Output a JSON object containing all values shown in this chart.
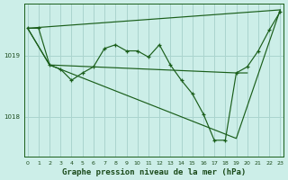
{
  "title": "Graphe pression niveau de la mer (hPa)",
  "bg_color": "#cceee8",
  "grid_color": "#aad4ce",
  "line_color": "#1a5e1a",
  "label_color": "#1a4a1a",
  "ylabel_ticks": [
    1018,
    1019
  ],
  "xticks": [
    0,
    1,
    2,
    3,
    4,
    5,
    6,
    7,
    8,
    9,
    10,
    11,
    12,
    13,
    14,
    15,
    16,
    17,
    18,
    19,
    20,
    21,
    22,
    23
  ],
  "series": {
    "line_upper_diagonal": {
      "x": [
        0,
        23
      ],
      "y": [
        1019.45,
        1019.75
      ]
    },
    "line_lower_diagonal": {
      "x": [
        0,
        2,
        19,
        23
      ],
      "y": [
        1019.45,
        1018.85,
        1017.65,
        1019.75
      ]
    },
    "line_flat": {
      "x": [
        0,
        2,
        19,
        20
      ],
      "y": [
        1019.45,
        1018.85,
        1018.72,
        1018.72
      ]
    },
    "line_zigzag": {
      "x": [
        0,
        1,
        2,
        3,
        4,
        5,
        6,
        7,
        8,
        9,
        10,
        11,
        12,
        13,
        14,
        15,
        16,
        17,
        18,
        19,
        20,
        21,
        22,
        23
      ],
      "y": [
        1019.45,
        1019.45,
        1018.85,
        1018.78,
        1018.6,
        1018.72,
        1018.82,
        1019.12,
        1019.18,
        1019.08,
        1019.08,
        1018.98,
        1019.18,
        1018.85,
        1018.6,
        1018.38,
        1018.05,
        1017.62,
        1017.62,
        1018.72,
        1018.82,
        1019.08,
        1019.42,
        1019.72
      ]
    }
  },
  "ylim": [
    1017.35,
    1019.85
  ],
  "xlim": [
    -0.3,
    23.3
  ]
}
